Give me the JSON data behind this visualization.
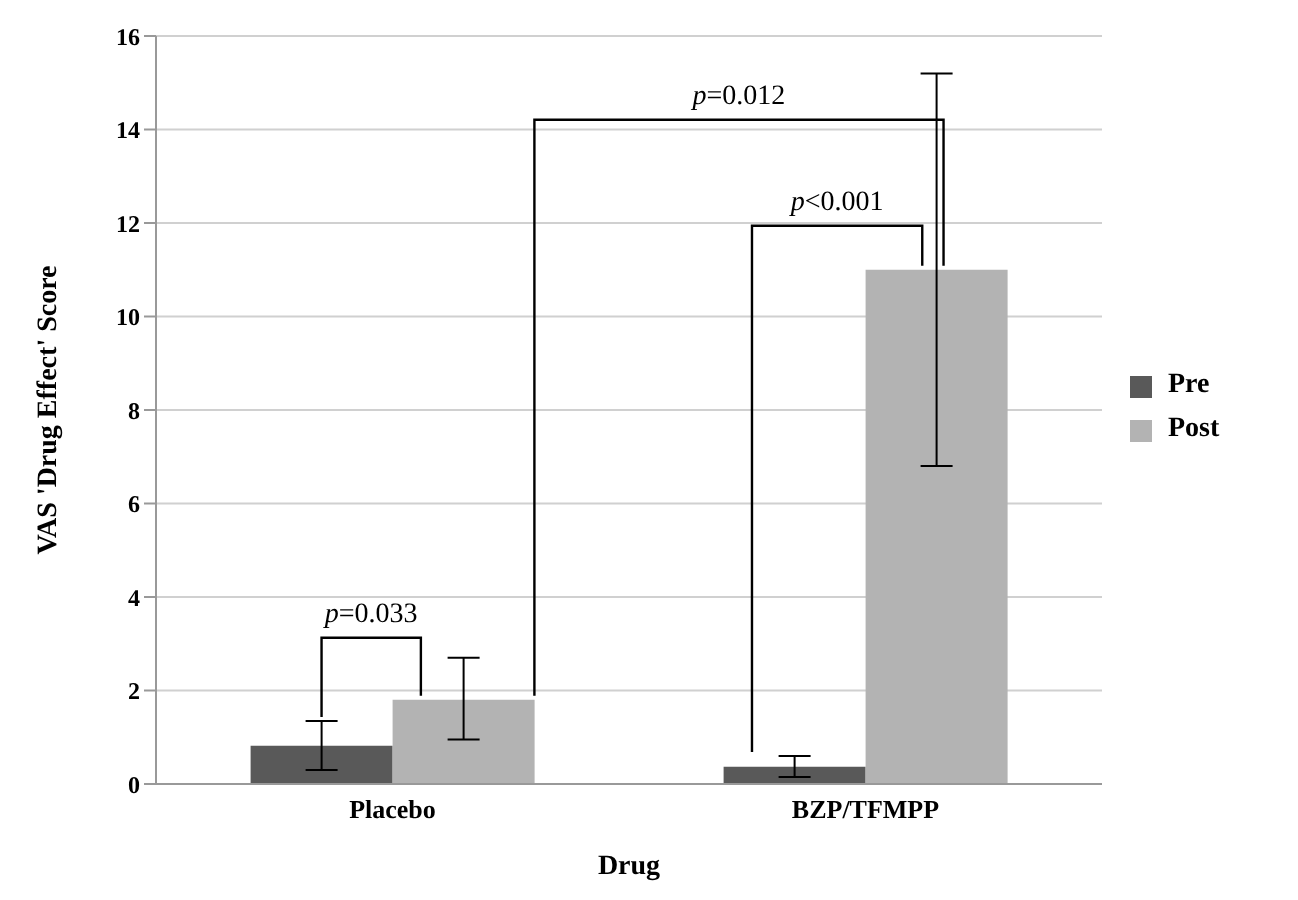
{
  "chart_data": {
    "type": "bar",
    "xlabel": "Drug",
    "ylabel": "VAS 'Drug Effect' Score",
    "categories": [
      "Placebo",
      "BZP/TFMPP"
    ],
    "series": [
      {
        "name": "Pre",
        "color": "#595959",
        "values": [
          0.82,
          0.37
        ],
        "errors": [
          [
            0.3,
            1.35
          ],
          [
            0.15,
            0.6
          ]
        ]
      },
      {
        "name": "Post",
        "color": "#b3b3b3",
        "values": [
          1.8,
          11.0
        ],
        "errors": [
          [
            0.95,
            2.7
          ],
          [
            6.8,
            15.2
          ]
        ]
      }
    ],
    "ylim": [
      0,
      16
    ],
    "yticks": [
      0,
      2,
      4,
      6,
      8,
      10,
      12,
      14,
      16
    ],
    "grid": "y",
    "legend": "right",
    "annotations": [
      "p=0.033",
      "p<0.001",
      "p=0.012"
    ]
  }
}
